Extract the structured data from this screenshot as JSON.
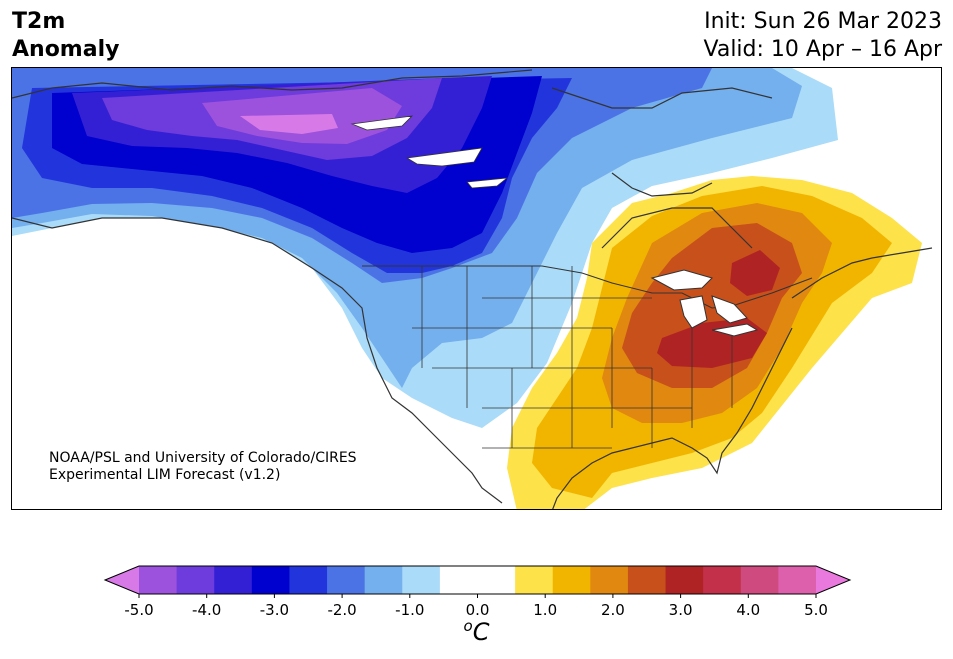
{
  "title": {
    "line1": "T2m",
    "line2": "Anomaly"
  },
  "init_label": "Init: Sun 26 Mar 2023",
  "valid_label": "Valid: 10 Apr – 16 Apr",
  "credit": {
    "line1": "NOAA/PSL and University of Colorado/CIRES",
    "line2": "Experimental LIM Forecast (v1.2)"
  },
  "colorbar": {
    "colors": [
      "#d77ae8",
      "#9c52dc",
      "#6e3bdc",
      "#3420d4",
      "#0000cf",
      "#2235dc",
      "#4b73e6",
      "#74afee",
      "#aadbf8",
      "#ffffff",
      "#ffffff",
      "#fde24a",
      "#f1b500",
      "#e08810",
      "#c8501a",
      "#b02325",
      "#c23049",
      "#cf4a7e",
      "#dd60ac",
      "#e979dc"
    ],
    "tick_labels": [
      "-5.0",
      "-4.0",
      "-3.0",
      "-2.0",
      "-1.0",
      "0.0",
      "1.0",
      "2.0",
      "3.0",
      "4.0",
      "5.0"
    ],
    "unit_base": "C",
    "unit_sup": "o"
  },
  "map_layers": {
    "land_color": "#ffffff",
    "border_color": "#333333",
    "anomaly_regions": [
      {
        "level": "-1.0",
        "color": "#aadbf8"
      },
      {
        "level": "-1.5",
        "color": "#74afee"
      },
      {
        "level": "-2.0",
        "color": "#4b73e6"
      },
      {
        "level": "-2.5",
        "color": "#2235dc"
      },
      {
        "level": "-3.0",
        "color": "#0000cf"
      },
      {
        "level": "-3.5",
        "color": "#3420d4"
      },
      {
        "level": "-4.0",
        "color": "#6e3bdc"
      },
      {
        "level": "-4.5",
        "color": "#9c52dc"
      },
      {
        "level": "-5.0",
        "color": "#d77ae8"
      },
      {
        "level": "1.0",
        "color": "#fde24a"
      },
      {
        "level": "1.5",
        "color": "#f1b500"
      },
      {
        "level": "2.0",
        "color": "#e08810"
      },
      {
        "level": "2.5",
        "color": "#c8501a"
      },
      {
        "level": "3.0",
        "color": "#b02325"
      }
    ]
  }
}
